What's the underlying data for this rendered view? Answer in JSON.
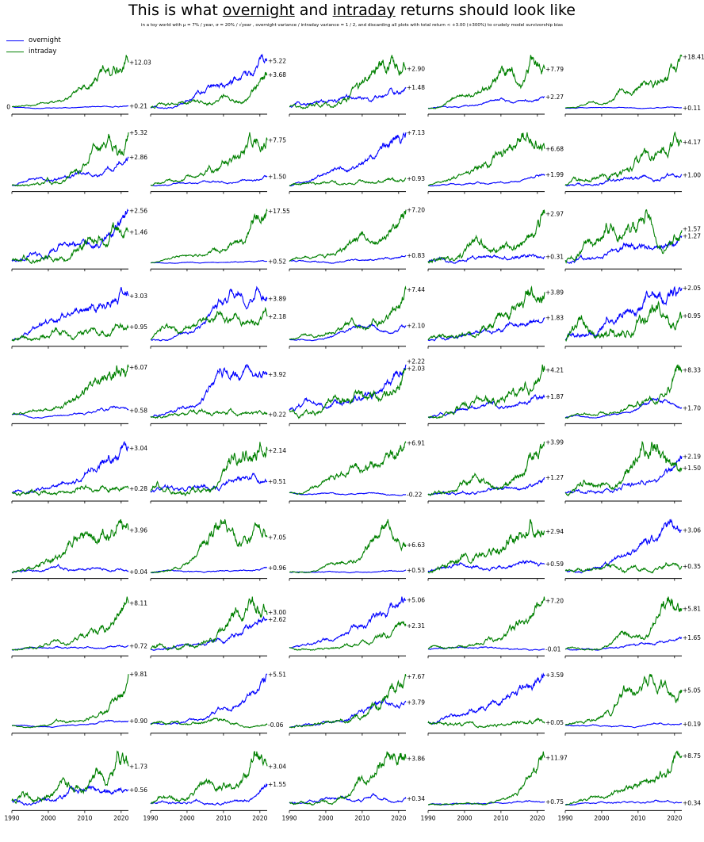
{
  "title_parts": [
    "This is what ",
    "overnight",
    " and ",
    "intraday",
    " returns should look like"
  ],
  "subtitle": "in a toy world with μ = 7% / year, σ = 20% / √year , overnight variance / intraday variance = 1 / 2, and discarding all plots with total return < +3.00 (+300%) to crudely model survivorship bias",
  "colors": {
    "overnight": "#0000ff",
    "intraday": "#008000"
  },
  "legend": [
    {
      "key": "overnight",
      "label": "overnight"
    },
    {
      "key": "intraday",
      "label": "intraday"
    }
  ],
  "zero_label": "0",
  "chart_data": {
    "type": "line",
    "x_ticks": [
      "1990",
      "2000",
      "2010",
      "2020"
    ],
    "xlim": [
      1990,
      2022
    ],
    "series_names": [
      "overnight",
      "intraday"
    ],
    "panels": [
      {
        "overnight": "+0.21",
        "intraday": "+12.03"
      },
      {
        "overnight": "+5.22",
        "intraday": "+3.68"
      },
      {
        "overnight": "+1.48",
        "intraday": "+2.90"
      },
      {
        "overnight": "+2.27",
        "intraday": "+7.79"
      },
      {
        "overnight": "+0.11",
        "intraday": "+18.41"
      },
      {
        "overnight": "+2.86",
        "intraday": "+5.32"
      },
      {
        "overnight": "+1.50",
        "intraday": "+7.75"
      },
      {
        "overnight": "+7.13",
        "intraday": "+0.93"
      },
      {
        "overnight": "+1.99",
        "intraday": "+6.68"
      },
      {
        "overnight": "+1.00",
        "intraday": "+4.17"
      },
      {
        "overnight": "+2.56",
        "intraday": "+1.46"
      },
      {
        "overnight": "+0.52",
        "intraday": "+17.55"
      },
      {
        "overnight": "+0.83",
        "intraday": "+7.20"
      },
      {
        "overnight": "+0.31",
        "intraday": "+2.97"
      },
      {
        "overnight": "+1.27",
        "intraday": "+1.57"
      },
      {
        "overnight": "+3.03",
        "intraday": "+0.95"
      },
      {
        "overnight": "+3.89",
        "intraday": "+2.18"
      },
      {
        "overnight": "+2.10",
        "intraday": "+7.44"
      },
      {
        "overnight": "+1.83",
        "intraday": "+3.89"
      },
      {
        "overnight": "+2.05",
        "intraday": "+0.95"
      },
      {
        "overnight": "+0.58",
        "intraday": "+6.07"
      },
      {
        "overnight": "+3.92",
        "intraday": "+0.22"
      },
      {
        "overnight": "+2.22",
        "intraday": "+2.03"
      },
      {
        "overnight": "+1.87",
        "intraday": "+4.21"
      },
      {
        "overnight": "+1.70",
        "intraday": "+8.33"
      },
      {
        "overnight": "+3.04",
        "intraday": "+0.28"
      },
      {
        "overnight": "+0.51",
        "intraday": "+2.14"
      },
      {
        "overnight": "-0.22",
        "intraday": "+6.91"
      },
      {
        "overnight": "+1.27",
        "intraday": "+3.99"
      },
      {
        "overnight": "+2.19",
        "intraday": "+1.50"
      },
      {
        "overnight": "+0.04",
        "intraday": "+3.96"
      },
      {
        "overnight": "+0.96",
        "intraday": "+7.05"
      },
      {
        "overnight": "+0.53",
        "intraday": "+6.63"
      },
      {
        "overnight": "+0.59",
        "intraday": "+2.94"
      },
      {
        "overnight": "+3.06",
        "intraday": "+0.35"
      },
      {
        "overnight": "+0.72",
        "intraday": "+8.11"
      },
      {
        "overnight": "+2.62",
        "intraday": "+3.00"
      },
      {
        "overnight": "+5.06",
        "intraday": "+2.31"
      },
      {
        "overnight": "-0.01",
        "intraday": "+7.20"
      },
      {
        "overnight": "+1.65",
        "intraday": "+5.81"
      },
      {
        "overnight": "+0.90",
        "intraday": "+9.81"
      },
      {
        "overnight": "+5.51",
        "intraday": "-0.06"
      },
      {
        "overnight": "+3.79",
        "intraday": "+7.67"
      },
      {
        "overnight": "+3.59",
        "intraday": "+0.05"
      },
      {
        "overnight": "+0.19",
        "intraday": "+5.05"
      },
      {
        "overnight": "+0.56",
        "intraday": "+1.73"
      },
      {
        "overnight": "+1.55",
        "intraday": "+3.04"
      },
      {
        "overnight": "+0.34",
        "intraday": "+3.86"
      },
      {
        "overnight": "+0.75",
        "intraday": "+11.97"
      },
      {
        "overnight": "+0.34",
        "intraday": "+8.75"
      }
    ]
  }
}
